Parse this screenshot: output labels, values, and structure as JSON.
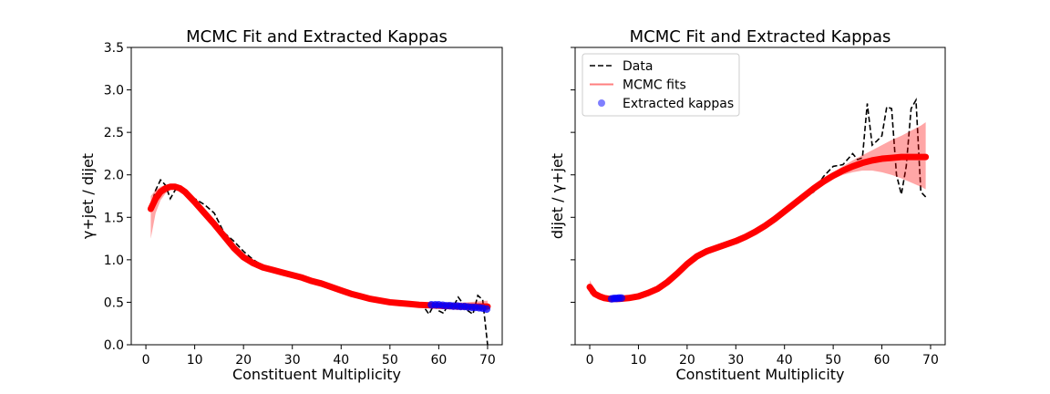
{
  "colors": {
    "data_line": "#000000",
    "mcmc_fit": "#ff0000",
    "kappa_points": "#0000ff"
  },
  "chart_data": [
    {
      "type": "line",
      "title": "MCMC Fit and Extracted Kappas",
      "xlabel": "Constituent Multiplicity",
      "ylabel": "γ+jet / dijet",
      "xlim": [
        -3,
        73
      ],
      "ylim": [
        0,
        3.5
      ],
      "x_ticks": [
        0,
        10,
        20,
        30,
        40,
        50,
        60,
        70
      ],
      "y_ticks": [
        0.0,
        0.5,
        1.0,
        1.5,
        2.0,
        2.5,
        3.0,
        3.5
      ],
      "y_tick_labels": [
        "0.0",
        "0.5",
        "1.0",
        "1.5",
        "2.0",
        "2.5",
        "3.0",
        "3.5"
      ],
      "grid": false,
      "series": [
        {
          "style": "dashed",
          "x": [
            1,
            2,
            3,
            4,
            5,
            6,
            7,
            8,
            9,
            10,
            12,
            14,
            16,
            18,
            20,
            22,
            24,
            26,
            28,
            30,
            32,
            34,
            36,
            38,
            40,
            42,
            44,
            46,
            48,
            50,
            52,
            54,
            56,
            57,
            58,
            59,
            60,
            61,
            62,
            63,
            64,
            65,
            66,
            67,
            68,
            69,
            70
          ],
          "y": [
            1.62,
            1.82,
            1.94,
            1.88,
            1.72,
            1.82,
            1.86,
            1.8,
            1.75,
            1.72,
            1.65,
            1.55,
            1.32,
            1.22,
            1.1,
            1.0,
            0.93,
            0.89,
            0.86,
            0.83,
            0.8,
            0.76,
            0.75,
            0.7,
            0.64,
            0.6,
            0.57,
            0.55,
            0.52,
            0.5,
            0.49,
            0.48,
            0.48,
            0.44,
            0.36,
            0.47,
            0.4,
            0.37,
            0.49,
            0.45,
            0.56,
            0.48,
            0.4,
            0.36,
            0.58,
            0.53,
            0.0
          ]
        },
        {
          "x": [
            1,
            2,
            3,
            4,
            5,
            6,
            7,
            8,
            9,
            10,
            12,
            14,
            16,
            18,
            20,
            22,
            24,
            26,
            28,
            30,
            32,
            34,
            36,
            38,
            40,
            42,
            44,
            46,
            48,
            50,
            52,
            54,
            56,
            58,
            60,
            62,
            64,
            66,
            68,
            70
          ],
          "y": [
            1.6,
            1.72,
            1.8,
            1.84,
            1.86,
            1.86,
            1.84,
            1.8,
            1.74,
            1.68,
            1.55,
            1.42,
            1.28,
            1.14,
            1.03,
            0.96,
            0.91,
            0.88,
            0.85,
            0.82,
            0.79,
            0.75,
            0.72,
            0.68,
            0.64,
            0.6,
            0.57,
            0.54,
            0.52,
            0.5,
            0.49,
            0.48,
            0.47,
            0.465,
            0.46,
            0.455,
            0.45,
            0.45,
            0.45,
            0.45
          ],
          "band_low": [
            1.25,
            1.55,
            1.7,
            1.78,
            1.82,
            1.84,
            1.82,
            1.78,
            1.73,
            1.67,
            1.54,
            1.41,
            1.27,
            1.13,
            1.02,
            0.95,
            0.9,
            0.87,
            0.84,
            0.81,
            0.78,
            0.745,
            0.715,
            0.675,
            0.635,
            0.595,
            0.565,
            0.535,
            0.515,
            0.495,
            0.48,
            0.47,
            0.46,
            0.45,
            0.44,
            0.43,
            0.42,
            0.41,
            0.4,
            0.39
          ],
          "band_high": [
            1.75,
            1.82,
            1.86,
            1.88,
            1.89,
            1.88,
            1.86,
            1.82,
            1.76,
            1.7,
            1.57,
            1.44,
            1.3,
            1.16,
            1.04,
            0.97,
            0.92,
            0.89,
            0.86,
            0.83,
            0.8,
            0.755,
            0.725,
            0.685,
            0.645,
            0.605,
            0.575,
            0.545,
            0.525,
            0.51,
            0.5,
            0.495,
            0.49,
            0.49,
            0.49,
            0.49,
            0.495,
            0.5,
            0.51,
            0.52
          ]
        },
        {
          "type": "scatter",
          "x": [
            58.5,
            59.3,
            60.0,
            60.8,
            61.5,
            62.3,
            63.0,
            63.8,
            64.5,
            65.3,
            66.0,
            66.8,
            67.5,
            68.3,
            69.0,
            69.8
          ],
          "y": [
            0.47,
            0.47,
            0.47,
            0.465,
            0.46,
            0.46,
            0.455,
            0.455,
            0.45,
            0.45,
            0.445,
            0.44,
            0.44,
            0.435,
            0.43,
            0.42
          ]
        }
      ]
    },
    {
      "type": "line",
      "title": "MCMC Fit and Extracted Kappas",
      "xlabel": "Constituent Multiplicity",
      "ylabel": "dijet / γ+jet",
      "xlim": [
        -3,
        73
      ],
      "ylim": [
        0,
        3.5
      ],
      "x_ticks": [
        0,
        10,
        20,
        30,
        40,
        50,
        60,
        70
      ],
      "y_ticks": [
        0.0,
        0.5,
        1.0,
        1.5,
        2.0,
        2.5,
        3.0,
        3.5
      ],
      "grid": false,
      "legend": {
        "position": "upper-left",
        "entries": [
          {
            "label": "Data",
            "style": "dashed"
          },
          {
            "label": "MCMC fits",
            "style": "line"
          },
          {
            "label": "Extracted kappas",
            "style": "marker"
          }
        ]
      },
      "series": [
        {
          "name": "Data",
          "style": "dashed",
          "x": [
            3,
            5,
            8,
            10,
            12,
            14,
            16,
            18,
            20,
            22,
            24,
            26,
            28,
            30,
            32,
            34,
            36,
            38,
            40,
            42,
            44,
            46,
            48,
            50,
            52,
            54,
            55,
            56,
            57,
            58,
            59,
            60,
            61,
            62,
            63,
            64,
            65,
            66,
            67,
            68,
            69
          ],
          "y": [
            0.54,
            0.55,
            0.55,
            0.56,
            0.6,
            0.66,
            0.74,
            0.84,
            0.94,
            1.02,
            1.07,
            1.12,
            1.17,
            1.22,
            1.27,
            1.34,
            1.4,
            1.48,
            1.56,
            1.64,
            1.72,
            1.8,
            1.98,
            2.1,
            2.12,
            2.25,
            2.18,
            2.2,
            2.84,
            2.35,
            2.4,
            2.46,
            2.8,
            2.78,
            2.0,
            1.77,
            2.1,
            2.78,
            2.88,
            1.8,
            1.74
          ]
        },
        {
          "name": "MCMC fits",
          "x": [
            0,
            1,
            2,
            3,
            4,
            5,
            6,
            8,
            10,
            12,
            14,
            16,
            18,
            20,
            22,
            24,
            26,
            28,
            30,
            32,
            34,
            36,
            38,
            40,
            42,
            44,
            46,
            48,
            50,
            52,
            54,
            56,
            58,
            60,
            62,
            64,
            66,
            68,
            69
          ],
          "y": [
            0.68,
            0.6,
            0.57,
            0.55,
            0.54,
            0.54,
            0.54,
            0.55,
            0.57,
            0.61,
            0.66,
            0.74,
            0.84,
            0.95,
            1.04,
            1.1,
            1.14,
            1.18,
            1.22,
            1.27,
            1.33,
            1.4,
            1.48,
            1.57,
            1.66,
            1.75,
            1.84,
            1.92,
            1.99,
            2.05,
            2.1,
            2.14,
            2.17,
            2.19,
            2.2,
            2.21,
            2.21,
            2.21,
            2.21
          ],
          "band_low": [
            0.6,
            0.56,
            0.54,
            0.53,
            0.53,
            0.53,
            0.53,
            0.54,
            0.56,
            0.6,
            0.65,
            0.73,
            0.83,
            0.94,
            1.03,
            1.09,
            1.13,
            1.17,
            1.21,
            1.26,
            1.32,
            1.39,
            1.47,
            1.56,
            1.65,
            1.74,
            1.82,
            1.89,
            1.95,
            2.0,
            2.03,
            2.05,
            2.05,
            2.03,
            2.0,
            1.96,
            1.91,
            1.86,
            1.83
          ],
          "band_high": [
            0.76,
            0.65,
            0.6,
            0.57,
            0.56,
            0.55,
            0.55,
            0.56,
            0.58,
            0.62,
            0.67,
            0.75,
            0.85,
            0.96,
            1.05,
            1.11,
            1.15,
            1.19,
            1.23,
            1.28,
            1.34,
            1.41,
            1.49,
            1.58,
            1.67,
            1.76,
            1.86,
            1.95,
            2.03,
            2.1,
            2.17,
            2.23,
            2.29,
            2.35,
            2.41,
            2.46,
            2.52,
            2.58,
            2.62
          ]
        },
        {
          "name": "Extracted kappas",
          "type": "scatter",
          "x": [
            4.5,
            5.0,
            5.5,
            6.0,
            6.5
          ],
          "y": [
            0.54,
            0.545,
            0.545,
            0.55,
            0.55
          ]
        }
      ]
    }
  ]
}
